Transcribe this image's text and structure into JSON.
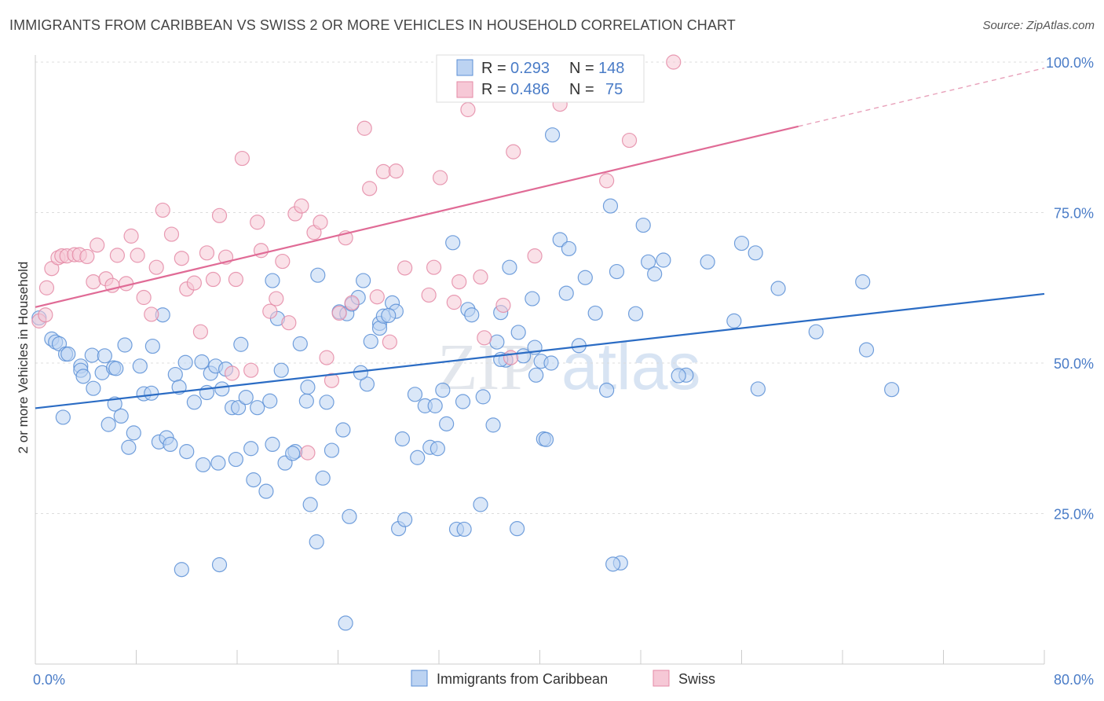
{
  "title": "IMMIGRANTS FROM CARIBBEAN VS SWISS 2 OR MORE VEHICLES IN HOUSEHOLD CORRELATION CHART",
  "source": "Source: ZipAtlas.com",
  "watermark": {
    "zip": "ZIP",
    "atlas": "atlas"
  },
  "stats": [
    {
      "r_label": "R =",
      "r_value": "0.293",
      "n_label": "N =",
      "n_value": "148",
      "color": "#5b8fd6"
    },
    {
      "r_label": "R =",
      "r_value": "0.486",
      "n_label": "N =",
      "n_value": "75",
      "color": "#e48aa6"
    }
  ],
  "chart_data": {
    "type": "scatter",
    "xlabel": "",
    "ylabel": "2 or more Vehicles in Household",
    "xlim": [
      0,
      80
    ],
    "ylim": [
      0,
      103
    ],
    "x_tick_labels": [
      {
        "value": 0,
        "label": "0.0%"
      },
      {
        "value": 80,
        "label": "80.0%"
      }
    ],
    "y_tick_labels": [
      {
        "value": 25,
        "label": "25.0%"
      },
      {
        "value": 50,
        "label": "50.0%"
      },
      {
        "value": 75,
        "label": "75.0%"
      },
      {
        "value": 100,
        "label": "100.0%"
      }
    ],
    "grid": true,
    "legend_position": "bottom",
    "series": [
      {
        "name": "Immigrants from Caribbean",
        "color": "#5b8fd6",
        "fill": "#bcd3f2",
        "trendline": {
          "x": [
            0,
            80
          ],
          "y": [
            42.5,
            61.5
          ],
          "solid_until": 80
        },
        "points": [
          [
            0.3,
            57.5
          ],
          [
            1.3,
            54
          ],
          [
            1.6,
            53.5
          ],
          [
            1.9,
            53.2
          ],
          [
            2.2,
            41
          ],
          [
            2.4,
            51.5
          ],
          [
            2.6,
            51.5
          ],
          [
            3.6,
            49.5
          ],
          [
            3.6,
            48.8
          ],
          [
            3.8,
            47.8
          ],
          [
            4.5,
            51.3
          ],
          [
            4.6,
            45.8
          ],
          [
            5.3,
            48.4
          ],
          [
            5.5,
            51.2
          ],
          [
            5.8,
            39.8
          ],
          [
            6.2,
            49.2
          ],
          [
            6.3,
            43.2
          ],
          [
            6.8,
            41.2
          ],
          [
            7.1,
            53
          ],
          [
            7.4,
            36
          ],
          [
            7.8,
            38.4
          ],
          [
            8.3,
            49.5
          ],
          [
            8.6,
            44.9
          ],
          [
            9.3,
            52.8
          ],
          [
            9.8,
            36.9
          ],
          [
            10.1,
            58
          ],
          [
            10.4,
            37.6
          ],
          [
            10.7,
            36.5
          ],
          [
            11.1,
            48.1
          ],
          [
            11.4,
            46
          ],
          [
            11.9,
            50.1
          ],
          [
            12.0,
            35.3
          ],
          [
            12.6,
            43.5
          ],
          [
            13.3,
            33.1
          ],
          [
            13.6,
            45.1
          ],
          [
            13.9,
            48.3
          ],
          [
            14.3,
            49.5
          ],
          [
            14.5,
            33.4
          ],
          [
            14.8,
            45.7
          ],
          [
            15.1,
            49
          ],
          [
            15.6,
            42.6
          ],
          [
            15.9,
            34
          ],
          [
            16.1,
            42.6
          ],
          [
            16.3,
            53.1
          ],
          [
            16.7,
            44.3
          ],
          [
            17.1,
            35.8
          ],
          [
            17.3,
            30.6
          ],
          [
            17.6,
            42.6
          ],
          [
            18.3,
            28.7
          ],
          [
            18.6,
            43.7
          ],
          [
            18.8,
            63.7
          ],
          [
            19.2,
            57.4
          ],
          [
            19.5,
            48.8
          ],
          [
            19.8,
            33.4
          ],
          [
            20.6,
            35.3
          ],
          [
            21.0,
            53.2
          ],
          [
            21.5,
            43.7
          ],
          [
            21.6,
            46
          ],
          [
            21.8,
            26.5
          ],
          [
            22.4,
            64.6
          ],
          [
            22.8,
            30.9
          ],
          [
            23.1,
            43.5
          ],
          [
            23.5,
            35.5
          ],
          [
            24.1,
            58.5
          ],
          [
            24.4,
            38.9
          ],
          [
            24.7,
            58.2
          ],
          [
            24.9,
            24.5
          ],
          [
            25.1,
            59.8
          ],
          [
            25.6,
            60.9
          ],
          [
            26.0,
            63.7
          ],
          [
            26.3,
            46.5
          ],
          [
            26.6,
            53.6
          ],
          [
            27.3,
            56.6
          ],
          [
            27.3,
            55.8
          ],
          [
            27.6,
            57.8
          ],
          [
            28.3,
            60
          ],
          [
            28.6,
            58.6
          ],
          [
            28.8,
            22.5
          ],
          [
            29.1,
            37.4
          ],
          [
            29.3,
            24
          ],
          [
            30.1,
            44.8
          ],
          [
            30.3,
            34.3
          ],
          [
            30.9,
            42.9
          ],
          [
            31.3,
            36
          ],
          [
            31.9,
            35.8
          ],
          [
            32.3,
            45.5
          ],
          [
            32.6,
            39.9
          ],
          [
            33.1,
            70
          ],
          [
            33.4,
            22.4
          ],
          [
            33.9,
            43.6
          ],
          [
            34.3,
            58.9
          ],
          [
            34.6,
            58
          ],
          [
            35.3,
            26.5
          ],
          [
            35.5,
            44.4
          ],
          [
            36.3,
            39.7
          ],
          [
            36.6,
            53.5
          ],
          [
            36.9,
            58.4
          ],
          [
            37.3,
            50.5
          ],
          [
            37.6,
            65.9
          ],
          [
            38.2,
            22.5
          ],
          [
            38.3,
            55.1
          ],
          [
            38.7,
            51.2
          ],
          [
            39.4,
            60.7
          ],
          [
            39.7,
            48
          ],
          [
            40.1,
            50.3
          ],
          [
            40.3,
            37.4
          ],
          [
            40.9,
            50
          ],
          [
            41.0,
            87.9
          ],
          [
            41.6,
            70.5
          ],
          [
            42.1,
            61.6
          ],
          [
            42.3,
            69
          ],
          [
            43.1,
            52.9
          ],
          [
            43.6,
            64.2
          ],
          [
            44.4,
            58.3
          ],
          [
            45.3,
            45.5
          ],
          [
            45.6,
            76.1
          ],
          [
            46.1,
            65.2
          ],
          [
            46.4,
            16.8
          ],
          [
            47.6,
            58.2
          ],
          [
            48.2,
            72.9
          ],
          [
            48.6,
            66.8
          ],
          [
            49.1,
            64.8
          ],
          [
            49.8,
            67.1
          ],
          [
            51.6,
            48
          ],
          [
            53.3,
            66.8
          ],
          [
            55.4,
            57
          ],
          [
            56.0,
            69.9
          ],
          [
            57.1,
            68.3
          ],
          [
            57.3,
            45.7
          ],
          [
            58.9,
            62.4
          ],
          [
            61.9,
            55.2
          ],
          [
            65.6,
            63.5
          ],
          [
            65.9,
            52.2
          ],
          [
            67.9,
            45.6
          ],
          [
            11.6,
            15.7
          ],
          [
            14.6,
            16.5
          ],
          [
            22.3,
            20.3
          ],
          [
            24.6,
            6.8
          ],
          [
            34.0,
            22.4
          ],
          [
            40.5,
            37.3
          ],
          [
            45.8,
            16.6
          ],
          [
            51.0,
            47.9
          ],
          [
            20.4,
            35.0
          ],
          [
            31.7,
            42.9
          ],
          [
            39.6,
            52.6
          ],
          [
            25.8,
            48.4
          ],
          [
            13.2,
            50.2
          ],
          [
            36.9,
            50.6
          ],
          [
            18.8,
            36.5
          ],
          [
            28.0,
            57.9
          ],
          [
            9.2,
            45.0
          ],
          [
            6.4,
            49.1
          ]
        ]
      },
      {
        "name": "Swiss",
        "color": "#e48aa6",
        "fill": "#f6c8d6",
        "trendline": {
          "x": [
            0,
            80
          ],
          "y": [
            59.3,
            99
          ],
          "solid_until": 60.5
        },
        "points": [
          [
            0.3,
            57
          ],
          [
            0.8,
            58
          ],
          [
            0.9,
            62.5
          ],
          [
            1.3,
            65.7
          ],
          [
            1.8,
            67.5
          ],
          [
            2.1,
            67.8
          ],
          [
            2.5,
            67.8
          ],
          [
            3.1,
            68
          ],
          [
            3.5,
            68
          ],
          [
            4.1,
            67.7
          ],
          [
            4.6,
            63.5
          ],
          [
            4.9,
            69.6
          ],
          [
            5.6,
            64
          ],
          [
            6.1,
            62.9
          ],
          [
            6.5,
            67.9
          ],
          [
            7.2,
            63.2
          ],
          [
            7.6,
            71.1
          ],
          [
            8.1,
            67.9
          ],
          [
            8.6,
            60.9
          ],
          [
            9.2,
            58.1
          ],
          [
            9.6,
            65.9
          ],
          [
            10.1,
            75.4
          ],
          [
            10.8,
            71.4
          ],
          [
            11.6,
            67.4
          ],
          [
            12.0,
            62.3
          ],
          [
            12.6,
            63.3
          ],
          [
            13.1,
            55.2
          ],
          [
            13.6,
            68.3
          ],
          [
            14.1,
            63.9
          ],
          [
            14.6,
            74.5
          ],
          [
            15.1,
            67.6
          ],
          [
            15.6,
            48.3
          ],
          [
            15.9,
            63.9
          ],
          [
            16.4,
            84
          ],
          [
            17.1,
            48.8
          ],
          [
            17.6,
            73.4
          ],
          [
            17.9,
            68.7
          ],
          [
            18.6,
            58.6
          ],
          [
            19.1,
            60.7
          ],
          [
            19.6,
            66.9
          ],
          [
            20.1,
            56.7
          ],
          [
            20.6,
            74.8
          ],
          [
            21.1,
            76.1
          ],
          [
            21.6,
            35.1
          ],
          [
            22.1,
            71.7
          ],
          [
            22.6,
            73.4
          ],
          [
            23.1,
            50.9
          ],
          [
            23.5,
            47.1
          ],
          [
            24.1,
            58.3
          ],
          [
            24.6,
            70.8
          ],
          [
            25.1,
            60
          ],
          [
            26.1,
            89
          ],
          [
            26.5,
            79
          ],
          [
            27.1,
            61
          ],
          [
            27.6,
            81.8
          ],
          [
            28.1,
            53.5
          ],
          [
            28.6,
            81.9
          ],
          [
            29.3,
            65.8
          ],
          [
            31.2,
            61.3
          ],
          [
            31.6,
            65.9
          ],
          [
            32.1,
            80.8
          ],
          [
            33.2,
            60.1
          ],
          [
            33.6,
            63.5
          ],
          [
            34.3,
            92.1
          ],
          [
            34.6,
            100
          ],
          [
            35.3,
            64.3
          ],
          [
            35.6,
            54.2
          ],
          [
            37.1,
            59.6
          ],
          [
            37.7,
            50.9
          ],
          [
            37.9,
            85.1
          ],
          [
            39.6,
            67.8
          ],
          [
            41.6,
            93
          ],
          [
            45.3,
            80.3
          ],
          [
            47.1,
            87
          ],
          [
            50.6,
            100
          ]
        ]
      }
    ]
  },
  "legend": [
    {
      "label": "Immigrants from Caribbean"
    },
    {
      "label": "Swiss"
    }
  ]
}
